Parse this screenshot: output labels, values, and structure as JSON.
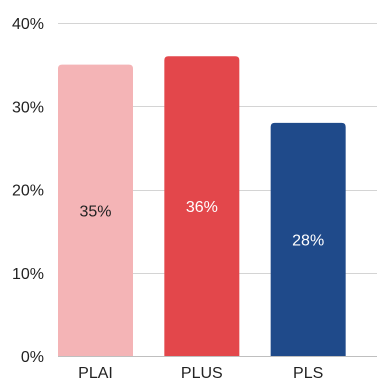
{
  "chart_data": {
    "type": "bar",
    "title": "",
    "xlabel": "",
    "ylabel": "",
    "categories": [
      "PLAI",
      "PLUS",
      "PLS"
    ],
    "values": [
      35,
      36,
      28
    ],
    "data_labels": [
      "35%",
      "36%",
      "28%"
    ],
    "bar_colors": [
      "#f4b4b6",
      "#e3474b",
      "#1f4a8a"
    ],
    "label_colors": [
      "#222222",
      "#ffffff",
      "#ffffff"
    ],
    "ylim": [
      0,
      40
    ],
    "y_ticks": [
      0,
      10,
      20,
      30,
      40
    ],
    "y_tick_labels": [
      "0%",
      "10%",
      "20%",
      "30%",
      "40%"
    ],
    "grid": true,
    "legend": "none"
  }
}
